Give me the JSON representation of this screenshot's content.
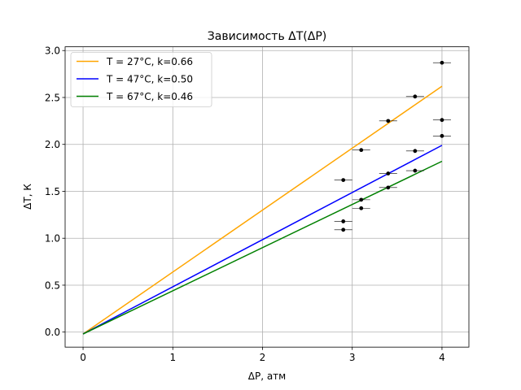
{
  "chart_data": {
    "type": "line",
    "title": "Зависимость ΔT(ΔP)",
    "xlabel": "ΔP, атм",
    "ylabel": "ΔT, К",
    "xlim": [
      -0.2,
      4.3
    ],
    "ylim": [
      -0.16,
      3.04
    ],
    "x_ticks": [
      "0",
      "1",
      "2",
      "3",
      "4"
    ],
    "y_ticks": [
      "0.0",
      "0.5",
      "1.0",
      "1.5",
      "2.0",
      "2.5",
      "3.0"
    ],
    "grid": true,
    "legend_position": "top-left",
    "series": [
      {
        "name": "T = 27°C, k=0.66",
        "color": "#ffa500",
        "x": [
          0,
          4
        ],
        "y": [
          -0.02,
          2.62
        ]
      },
      {
        "name": "T = 47°C, k=0.50",
        "color": "#0000ff",
        "x": [
          0,
          4
        ],
        "y": [
          -0.02,
          1.99
        ]
      },
      {
        "name": "T = 67°C, k=0.46",
        "color": "#008000",
        "x": [
          0,
          4
        ],
        "y": [
          -0.02,
          1.82
        ]
      }
    ],
    "points": {
      "color": "#000000",
      "x_error": 0.1,
      "x": [
        2.9,
        2.9,
        2.9,
        3.1,
        3.1,
        3.1,
        3.4,
        3.4,
        3.4,
        3.7,
        3.7,
        3.7,
        4.0,
        4.0,
        4.0
      ],
      "y": [
        1.09,
        1.18,
        1.62,
        1.32,
        1.41,
        1.94,
        1.54,
        1.69,
        2.25,
        1.72,
        1.93,
        2.51,
        2.09,
        2.26,
        2.87
      ]
    }
  }
}
